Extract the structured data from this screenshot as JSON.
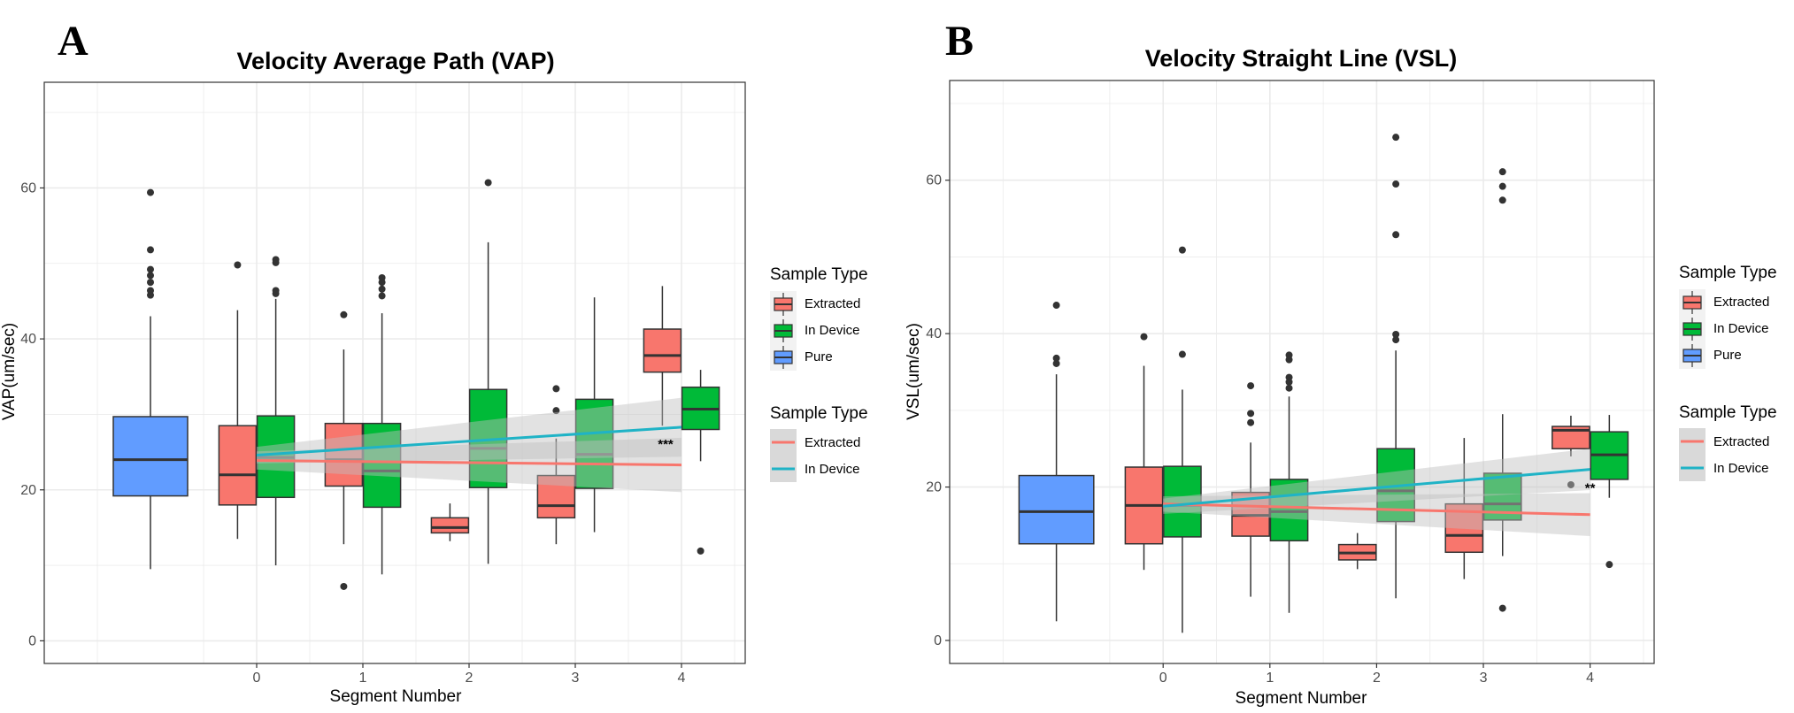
{
  "colors": {
    "extracted": "#F8766D",
    "in_device": "#00BA38",
    "pure": "#619CFF",
    "trend_extracted": "#F8766D",
    "trend_in_device": "#1FB3C6",
    "ci_band": "#BEBEBE",
    "grid": "#EBEBEB"
  },
  "chart_data": [
    {
      "type": "box",
      "panel_label": "A",
      "title": "Velocity Average Path (VAP)",
      "xlabel": "Segment Number",
      "ylabel": "VAP(um/sec)",
      "ylim": [
        -3,
        74
      ],
      "y_ticks": [
        0,
        20,
        40,
        60
      ],
      "x_ticks": [
        "0",
        "1",
        "2",
        "3",
        "4"
      ],
      "xlim": [
        -2.0,
        4.6
      ],
      "boxes": [
        {
          "x": -1.0,
          "group": "Pure",
          "whisker_low": 9.5,
          "q1": 19.2,
          "median": 24.0,
          "q3": 29.7,
          "whisker_high": 43.0,
          "outliers": [
            45.8,
            46.4,
            47.5,
            48.4,
            49.2,
            51.8,
            59.4
          ]
        },
        {
          "x": -0.18,
          "group": "Extracted",
          "whisker_low": 13.5,
          "q1": 18.0,
          "median": 22.0,
          "q3": 28.5,
          "whisker_high": 43.8,
          "outliers": [
            49.8
          ]
        },
        {
          "x": 0.18,
          "group": "In Device",
          "whisker_low": 10.0,
          "q1": 19.0,
          "median": 24.3,
          "q3": 29.8,
          "whisker_high": 45.3,
          "outliers": [
            46.0,
            46.4,
            50.1,
            50.5
          ]
        },
        {
          "x": 0.82,
          "group": "Extracted",
          "whisker_low": 12.8,
          "q1": 20.5,
          "median": 24.0,
          "q3": 28.8,
          "whisker_high": 38.6,
          "outliers": [
            7.2,
            43.2
          ]
        },
        {
          "x": 1.18,
          "group": "In Device",
          "whisker_low": 8.8,
          "q1": 17.7,
          "median": 22.5,
          "q3": 28.8,
          "whisker_high": 43.4,
          "outliers": [
            45.7,
            46.6,
            47.5,
            48.1
          ]
        },
        {
          "x": 1.82,
          "group": "Extracted",
          "whisker_low": 13.2,
          "q1": 14.3,
          "median": 15.0,
          "q3": 16.3,
          "whisker_high": 18.2,
          "outliers": []
        },
        {
          "x": 2.18,
          "group": "In Device",
          "whisker_low": 10.2,
          "q1": 20.3,
          "median": 25.5,
          "q3": 33.3,
          "whisker_high": 52.8,
          "outliers": [
            60.7
          ]
        },
        {
          "x": 2.82,
          "group": "Extracted",
          "whisker_low": 12.8,
          "q1": 16.3,
          "median": 17.9,
          "q3": 21.9,
          "whisker_high": 26.8,
          "outliers": [
            30.5,
            33.4
          ]
        },
        {
          "x": 3.18,
          "group": "In Device",
          "whisker_low": 14.4,
          "q1": 20.2,
          "median": 24.7,
          "q3": 32.0,
          "whisker_high": 45.5,
          "outliers": []
        },
        {
          "x": 3.82,
          "group": "Extracted",
          "whisker_low": 28.5,
          "q1": 35.6,
          "median": 37.8,
          "q3": 41.3,
          "whisker_high": 47.0,
          "outliers": []
        },
        {
          "x": 4.18,
          "group": "In Device",
          "whisker_low": 23.8,
          "q1": 28.0,
          "median": 30.7,
          "q3": 33.6,
          "whisker_high": 35.9,
          "outliers": [
            11.9
          ]
        }
      ],
      "trend_lines": [
        {
          "name": "Extracted",
          "x": [
            0,
            4
          ],
          "y": [
            23.9,
            23.3
          ],
          "ci_low": [
            22.7,
            19.7
          ],
          "ci_high": [
            25.1,
            26.9
          ]
        },
        {
          "name": "In Device",
          "x": [
            0,
            4
          ],
          "y": [
            24.6,
            28.3
          ],
          "ci_low": [
            23.5,
            24.4
          ],
          "ci_high": [
            25.7,
            32.2
          ]
        }
      ],
      "annotation": {
        "text": "***",
        "x": 3.85,
        "y": 25.5
      },
      "legend_box_title": "Sample Type",
      "legend_box": [
        "Extracted",
        "In Device",
        "Pure"
      ],
      "legend_line_title": "Sample Type",
      "legend_line": [
        "Extracted",
        "In Device"
      ]
    },
    {
      "type": "box",
      "panel_label": "B",
      "title": "Velocity Straight Line (VSL)",
      "xlabel": "Segment Number",
      "ylabel": "VSL(um/sec)",
      "ylim": [
        -3,
        73
      ],
      "y_ticks": [
        0,
        20,
        40,
        60
      ],
      "x_ticks": [
        "0",
        "1",
        "2",
        "3",
        "4"
      ],
      "xlim": [
        -2.0,
        4.6
      ],
      "boxes": [
        {
          "x": -1.0,
          "group": "Pure",
          "whisker_low": 2.5,
          "q1": 12.6,
          "median": 16.8,
          "q3": 21.5,
          "whisker_high": 34.7,
          "outliers": [
            36.1,
            36.8,
            43.7
          ]
        },
        {
          "x": -0.18,
          "group": "Extracted",
          "whisker_low": 9.2,
          "q1": 12.6,
          "median": 17.6,
          "q3": 22.6,
          "whisker_high": 35.8,
          "outliers": [
            39.6
          ]
        },
        {
          "x": 0.18,
          "group": "In Device",
          "whisker_low": 1.0,
          "q1": 13.5,
          "median": 17.6,
          "q3": 22.7,
          "whisker_high": 32.7,
          "outliers": [
            37.3,
            50.9
          ]
        },
        {
          "x": 0.82,
          "group": "Extracted",
          "whisker_low": 5.7,
          "q1": 13.6,
          "median": 16.3,
          "q3": 19.3,
          "whisker_high": 25.8,
          "outliers": [
            28.4,
            29.6,
            33.2
          ]
        },
        {
          "x": 1.18,
          "group": "In Device",
          "whisker_low": 3.6,
          "q1": 13.0,
          "median": 16.8,
          "q3": 21.0,
          "whisker_high": 31.8,
          "outliers": [
            32.9,
            33.7,
            34.3,
            36.6,
            37.2
          ]
        },
        {
          "x": 1.82,
          "group": "Extracted",
          "whisker_low": 9.3,
          "q1": 10.5,
          "median": 11.4,
          "q3": 12.5,
          "whisker_high": 14.0,
          "outliers": []
        },
        {
          "x": 2.18,
          "group": "In Device",
          "whisker_low": 5.5,
          "q1": 15.5,
          "median": 19.5,
          "q3": 25.0,
          "whisker_high": 37.8,
          "outliers": [
            39.2,
            39.9,
            52.9,
            59.5,
            65.6
          ]
        },
        {
          "x": 2.82,
          "group": "Extracted",
          "whisker_low": 8.0,
          "q1": 11.5,
          "median": 13.7,
          "q3": 17.8,
          "whisker_high": 26.4,
          "outliers": []
        },
        {
          "x": 3.18,
          "group": "In Device",
          "whisker_low": 11.0,
          "q1": 15.7,
          "median": 17.8,
          "q3": 21.8,
          "whisker_high": 29.5,
          "outliers": [
            4.2,
            57.4,
            59.2,
            61.1
          ]
        },
        {
          "x": 3.82,
          "group": "Extracted",
          "whisker_low": 24.0,
          "q1": 25.0,
          "median": 27.4,
          "q3": 27.9,
          "whisker_high": 29.3,
          "outliers": [
            20.3
          ]
        },
        {
          "x": 4.18,
          "group": "In Device",
          "whisker_low": 18.6,
          "q1": 21.0,
          "median": 24.2,
          "q3": 27.2,
          "whisker_high": 29.4,
          "outliers": [
            9.9
          ]
        }
      ],
      "trend_lines": [
        {
          "name": "Extracted",
          "x": [
            0,
            4
          ],
          "y": [
            17.8,
            16.4
          ],
          "ci_low": [
            16.8,
            13.6
          ],
          "ci_high": [
            18.8,
            19.2
          ]
        },
        {
          "name": "In Device",
          "x": [
            0,
            4
          ],
          "y": [
            17.5,
            22.3
          ],
          "ci_low": [
            16.5,
            19.6
          ],
          "ci_high": [
            18.5,
            25.0
          ]
        }
      ],
      "annotation": {
        "text": "**",
        "x": 4.0,
        "y": 19.3
      },
      "legend_box_title": "Sample Type",
      "legend_box": [
        "Extracted",
        "In Device",
        "Pure"
      ],
      "legend_line_title": "Sample Type",
      "legend_line": [
        "Extracted",
        "In Device"
      ]
    }
  ]
}
